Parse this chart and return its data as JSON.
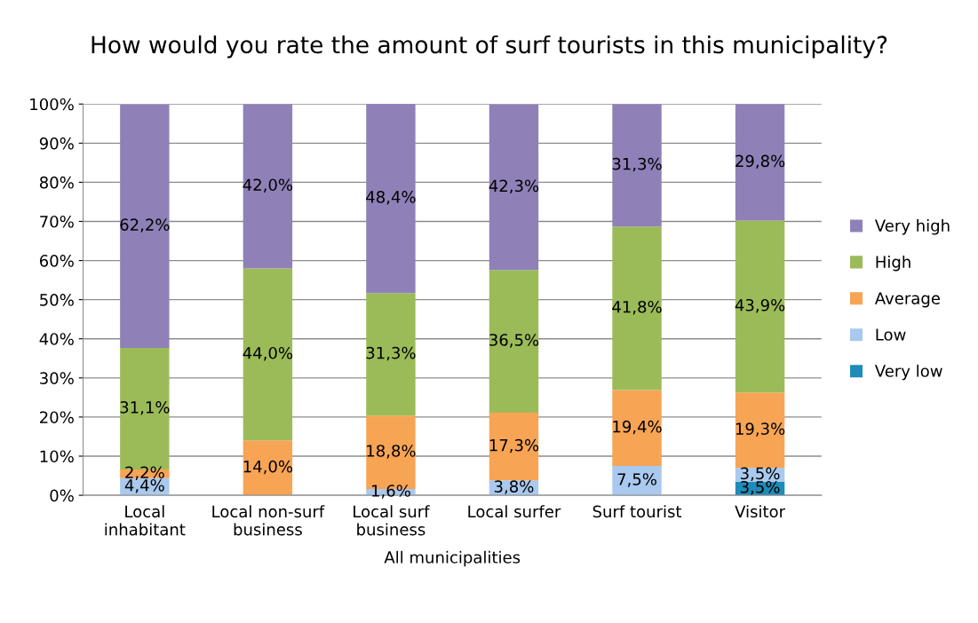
{
  "chart_data": {
    "type": "bar",
    "stacked": true,
    "title": "How would you rate the amount of surf tourists in this municipality?",
    "xlabel": "All municipalities",
    "categories": [
      "Local\ninhabitant",
      "Local non-surf\nbusiness",
      "Local surf\nbusiness",
      "Local surfer",
      "Surf tourist",
      "Visitor"
    ],
    "series": [
      {
        "name": "Very low",
        "color": "#1f8bb8",
        "values": [
          null,
          null,
          null,
          null,
          null,
          3.5
        ],
        "value_labels": [
          null,
          null,
          null,
          null,
          null,
          "3,5%"
        ]
      },
      {
        "name": "Low",
        "color": "#a9c9ee",
        "values": [
          4.4,
          null,
          1.6,
          3.8,
          7.5,
          3.5
        ],
        "value_labels": [
          "4,4%",
          null,
          "1,6%",
          "3,8%",
          "7,5%",
          "3,5%"
        ]
      },
      {
        "name": "Average",
        "color": "#f7a455",
        "values": [
          2.2,
          14.0,
          18.8,
          17.3,
          19.4,
          19.3
        ],
        "value_labels": [
          "2,2%",
          "14,0%",
          "18,8%",
          "17,3%",
          "19,4%",
          "19,3%"
        ]
      },
      {
        "name": "High",
        "color": "#9bbb59",
        "values": [
          31.1,
          44.0,
          31.3,
          36.5,
          41.8,
          43.9
        ],
        "value_labels": [
          "31,1%",
          "44,0%",
          "31,3%",
          "36,5%",
          "41,8%",
          "43,9%"
        ]
      },
      {
        "name": "Very high",
        "color": "#9080b8",
        "values": [
          62.2,
          42.0,
          48.4,
          42.3,
          31.3,
          29.8
        ],
        "value_labels": [
          "62,2%",
          "42,0%",
          "48,4%",
          "42,3%",
          "31,3%",
          "29,8%"
        ]
      }
    ],
    "ylim": [
      0,
      100
    ],
    "yticks": [
      {
        "value": 0,
        "label": "0%"
      },
      {
        "value": 10,
        "label": "10%"
      },
      {
        "value": 20,
        "label": "20%"
      },
      {
        "value": 30,
        "label": "30%"
      },
      {
        "value": 40,
        "label": "40%"
      },
      {
        "value": 50,
        "label": "50%"
      },
      {
        "value": 60,
        "label": "60%"
      },
      {
        "value": 70,
        "label": "70%"
      },
      {
        "value": 80,
        "label": "80%"
      },
      {
        "value": 90,
        "label": "90%"
      },
      {
        "value": 100,
        "label": "100%"
      }
    ],
    "grid": "y",
    "legend": "right"
  }
}
